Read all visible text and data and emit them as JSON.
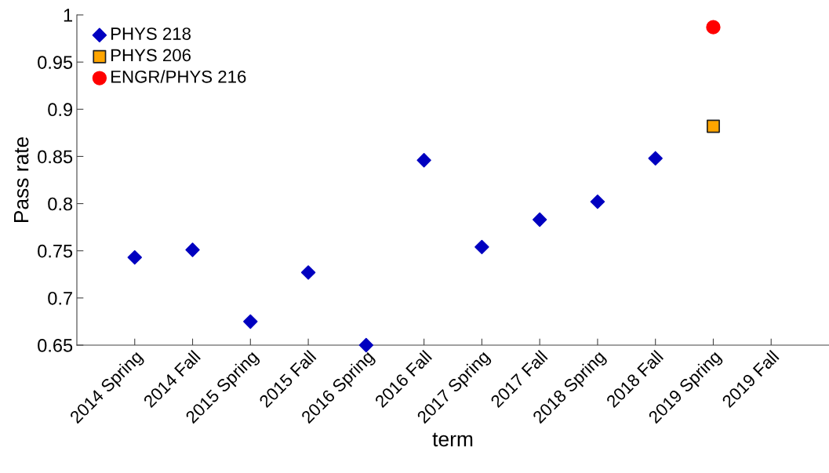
{
  "chart_data": {
    "type": "scatter",
    "xlabel": "term",
    "ylabel": "Pass rate",
    "categories": [
      "2014 Spring",
      "2014 Fall",
      "2015 Spring",
      "2015 Fall",
      "2016 Spring",
      "2016 Fall",
      "2017 Spring",
      "2017 Fall",
      "2018 Spring",
      "2018 Fall",
      "2019 Spring",
      "2019 Fall"
    ],
    "series": [
      {
        "name": "PHYS 218",
        "color": "#0000c0",
        "marker": "diamond",
        "values": [
          0.743,
          0.751,
          0.675,
          0.727,
          0.65,
          0.846,
          0.754,
          0.783,
          0.802,
          0.848,
          null,
          null
        ]
      },
      {
        "name": "PHYS 206",
        "color": "#ffa500",
        "marker": "square",
        "values": [
          null,
          null,
          null,
          null,
          null,
          null,
          null,
          null,
          null,
          null,
          0.882,
          null
        ]
      },
      {
        "name": "ENGR/PHYS 216",
        "color": "#ff0000",
        "marker": "circle",
        "values": [
          null,
          null,
          null,
          null,
          null,
          null,
          null,
          null,
          null,
          null,
          0.987,
          null
        ]
      }
    ],
    "ylim": [
      0.65,
      1
    ],
    "yticks": [
      0.65,
      {
        "value": 0.7,
        "label": "0.7"
      },
      0.75,
      {
        "value": 0.8,
        "label": "0.8"
      },
      0.85,
      {
        "value": 0.9,
        "label": "0.9"
      },
      0.95,
      {
        "value": 1,
        "label": "1"
      }
    ],
    "legend": "top left",
    "grid": false
  }
}
